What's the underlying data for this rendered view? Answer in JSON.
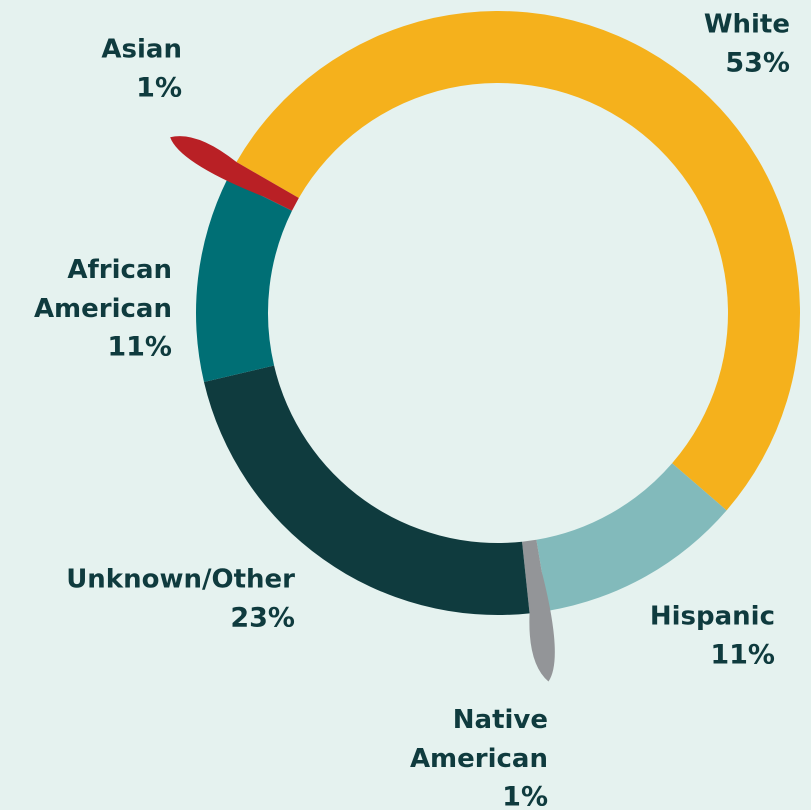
{
  "chart_data": {
    "type": "pie",
    "donut": true,
    "categories": [
      "White",
      "Hispanic",
      "Native American",
      "Unknown/Other",
      "African American",
      "Asian"
    ],
    "values": [
      53,
      11,
      1,
      23,
      11,
      1
    ],
    "value_labels": [
      "53%",
      "11%",
      "1%",
      "23%",
      "11%",
      "1%"
    ],
    "colors": [
      "#f5b11c",
      "#82babb",
      "#939598",
      "#0f3b3e",
      "#006f75",
      "#b92025"
    ]
  }
}
